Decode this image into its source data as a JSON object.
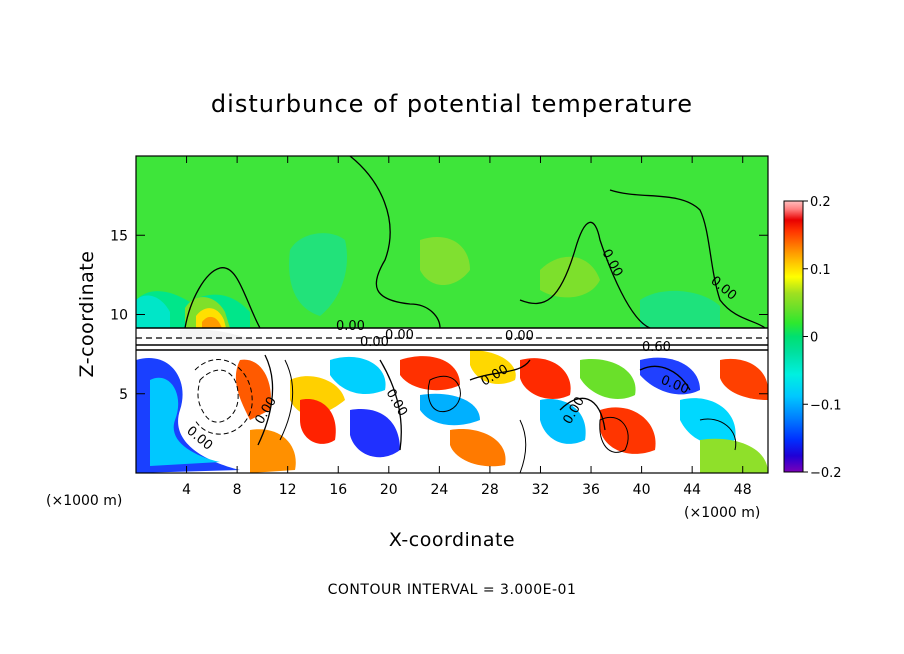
{
  "chart_data": {
    "type": "heatmap",
    "title": "disturbunce of potential temperature",
    "xlabel": "X-coordinate",
    "ylabel": "Z-coordinate",
    "x_unit": "(×1000 m)",
    "z_unit": "(×1000 m)",
    "xlim": [
      0,
      50
    ],
    "zlim": [
      0,
      20
    ],
    "x_ticks": [
      4,
      8,
      12,
      16,
      20,
      24,
      28,
      32,
      36,
      40,
      44,
      48
    ],
    "z_ticks": [
      5,
      10,
      15
    ],
    "colorbar": {
      "min": -0.2,
      "max": 0.2,
      "ticks": [
        "0.2",
        "0.1",
        "0",
        "−0.1",
        "−0.2"
      ],
      "colors": [
        "#7a00b8",
        "#1f00d6",
        "#0030ff",
        "#0080ff",
        "#00c8ff",
        "#00f0e0",
        "#00e0a0",
        "#00e070",
        "#2ee82e",
        "#66e02a",
        "#a0e020",
        "#ffff00",
        "#ffc800",
        "#ff9900",
        "#ff6600",
        "#ff3300",
        "#e80000",
        "#ff8080",
        "#ffc0c0"
      ]
    },
    "contour_labels": [
      "0.00",
      "0.00",
      "0.00",
      "0.00",
      "0.00",
      "0.00",
      "0.60",
      "0.00",
      "0.00",
      "0.00",
      "0.00",
      "0.00",
      "0.00"
    ],
    "contour_interval": "CONTOUR INTERVAL = 3.000E-01"
  }
}
